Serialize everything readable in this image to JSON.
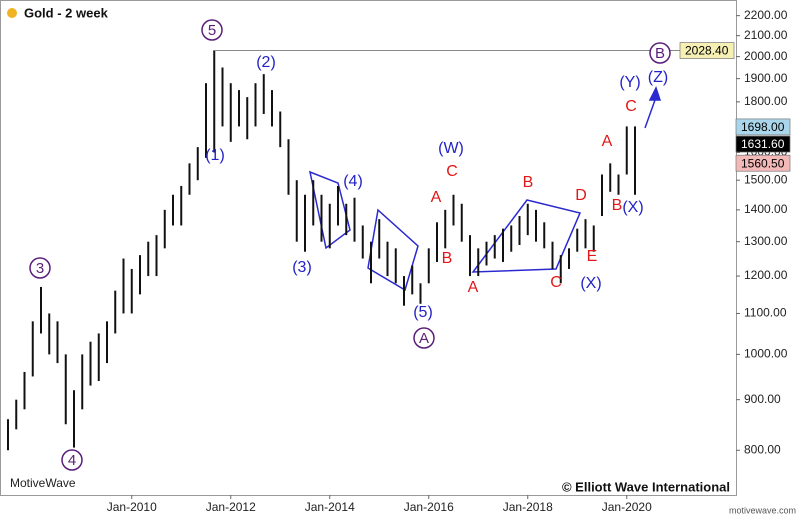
{
  "chart_data": {
    "type": "ohlc",
    "title": "Gold - 2 week",
    "title_dot_color": "#f0b323",
    "brand": "MotiveWave",
    "credit": "© Elliott Wave International",
    "site": "motivewave.com",
    "log_scale": true,
    "color": "#111111",
    "x": [
      "2007-07",
      "2007-09",
      "2007-11",
      "2008-01",
      "2008-03",
      "2008-05",
      "2008-07",
      "2008-09",
      "2008-11",
      "2009-01",
      "2009-03",
      "2009-05",
      "2009-07",
      "2009-09",
      "2009-11",
      "2010-01",
      "2010-03",
      "2010-05",
      "2010-07",
      "2010-09",
      "2010-11",
      "2011-01",
      "2011-03",
      "2011-05",
      "2011-07",
      "2011-09",
      "2011-11",
      "2012-01",
      "2012-03",
      "2012-05",
      "2012-07",
      "2012-09",
      "2012-11",
      "2013-01",
      "2013-03",
      "2013-05",
      "2013-07",
      "2013-09",
      "2013-11",
      "2014-01",
      "2014-03",
      "2014-05",
      "2014-07",
      "2014-09",
      "2014-11",
      "2015-01",
      "2015-03",
      "2015-05",
      "2015-07",
      "2015-09",
      "2015-11",
      "2016-01",
      "2016-03",
      "2016-05",
      "2016-07",
      "2016-09",
      "2016-11",
      "2017-01",
      "2017-03",
      "2017-05",
      "2017-07",
      "2017-09",
      "2017-11",
      "2018-01",
      "2018-03",
      "2018-05",
      "2018-07",
      "2018-09",
      "2018-11",
      "2019-01",
      "2019-03",
      "2019-05",
      "2019-07",
      "2019-09",
      "2019-11",
      "2020-01",
      "2020-03"
    ],
    "high": [
      860,
      900,
      960,
      1080,
      1170,
      1100,
      1080,
      1000,
      920,
      1000,
      1030,
      1050,
      1080,
      1160,
      1250,
      1220,
      1260,
      1300,
      1320,
      1400,
      1450,
      1480,
      1560,
      1620,
      1880,
      2030,
      1950,
      1880,
      1850,
      1820,
      1880,
      1920,
      1850,
      1760,
      1650,
      1500,
      1450,
      1500,
      1450,
      1420,
      1480,
      1420,
      1440,
      1350,
      1300,
      1370,
      1300,
      1280,
      1200,
      1230,
      1180,
      1280,
      1360,
      1400,
      1450,
      1420,
      1320,
      1280,
      1300,
      1320,
      1340,
      1350,
      1380,
      1420,
      1400,
      1360,
      1300,
      1260,
      1280,
      1340,
      1370,
      1350,
      1520,
      1560,
      1520,
      1700,
      1700
    ],
    "low": [
      800,
      840,
      880,
      950,
      1050,
      1000,
      980,
      850,
      805,
      880,
      930,
      940,
      980,
      1050,
      1100,
      1100,
      1150,
      1200,
      1200,
      1280,
      1350,
      1350,
      1450,
      1500,
      1580,
      1600,
      1700,
      1640,
      1700,
      1650,
      1700,
      1750,
      1700,
      1620,
      1450,
      1300,
      1270,
      1350,
      1300,
      1280,
      1350,
      1320,
      1300,
      1250,
      1180,
      1250,
      1200,
      1180,
      1120,
      1150,
      1125,
      1180,
      1240,
      1280,
      1350,
      1300,
      1200,
      1200,
      1230,
      1250,
      1240,
      1270,
      1290,
      1320,
      1300,
      1280,
      1220,
      1180,
      1220,
      1270,
      1280,
      1270,
      1380,
      1460,
      1450,
      1520,
      1450
    ],
    "xlim": [
      "2007-07",
      "2022-03"
    ],
    "xticks": [
      {
        "value": "2010-01",
        "label": "Jan-2010"
      },
      {
        "value": "2012-01",
        "label": "Jan-2012"
      },
      {
        "value": "2014-01",
        "label": "Jan-2014"
      },
      {
        "value": "2016-01",
        "label": "Jan-2016"
      },
      {
        "value": "2018-01",
        "label": "Jan-2018"
      },
      {
        "value": "2020-01",
        "label": "Jan-2020"
      }
    ],
    "ylim": [
      750,
      2250
    ],
    "yticks": [
      {
        "value": 800,
        "label": "800.00"
      },
      {
        "value": 900,
        "label": "900.00"
      },
      {
        "value": 1000,
        "label": "1000.00"
      },
      {
        "value": 1100,
        "label": "1100.00"
      },
      {
        "value": 1200,
        "label": "1200.00"
      },
      {
        "value": 1300,
        "label": "1300.00"
      },
      {
        "value": 1400,
        "label": "1400.00"
      },
      {
        "value": 1500,
        "label": "1500.00"
      },
      {
        "value": 1600,
        "label": "1600.00"
      },
      {
        "value": 1700,
        "label": "1700.00"
      },
      {
        "value": 1800,
        "label": "1800.00"
      },
      {
        "value": 1900,
        "label": "1900.00"
      },
      {
        "value": 2000,
        "label": "2000.00"
      },
      {
        "value": 2100,
        "label": "2100.00"
      },
      {
        "value": 2200,
        "label": "2200.00"
      }
    ],
    "price_labels": [
      {
        "value": 2028.4,
        "label": "2028.40",
        "color": "#f6f0b4",
        "text_color": "#000000"
      },
      {
        "value": 1698,
        "label": "1698.00",
        "color": "#a9d6ea",
        "text_color": "#000000"
      },
      {
        "value": 1631.6,
        "label": "1631.60",
        "color": "#000000",
        "text_color": "#ffffff"
      },
      {
        "value": 1560.5,
        "label": "1560.50",
        "color": "#f3b8b8",
        "text_color": "#000000"
      }
    ],
    "annotations": [
      {
        "text": "5",
        "style": "circle"
      },
      {
        "text": "3",
        "style": "circle"
      },
      {
        "text": "4",
        "style": "circle"
      },
      {
        "text": "A",
        "style": "circle"
      },
      {
        "text": "B",
        "style": "circle"
      },
      {
        "text": "(1)",
        "style": "blue"
      },
      {
        "text": "(2)",
        "style": "blue"
      },
      {
        "text": "(3)",
        "style": "blue"
      },
      {
        "text": "(4)",
        "style": "blue"
      },
      {
        "text": "(5)",
        "style": "blue"
      },
      {
        "text": "(W)",
        "style": "blue"
      },
      {
        "text": "(X)",
        "style": "blue"
      },
      {
        "text": "(X)",
        "style": "blue"
      },
      {
        "text": "(Y)",
        "style": "blue"
      },
      {
        "text": "(Z)",
        "style": "blue"
      },
      {
        "text": "C",
        "style": "red"
      },
      {
        "text": "A",
        "style": "red"
      },
      {
        "text": "B",
        "style": "red"
      },
      {
        "text": "A",
        "style": "red"
      },
      {
        "text": "B",
        "style": "red"
      },
      {
        "text": "C",
        "style": "red"
      },
      {
        "text": "D",
        "style": "red"
      },
      {
        "text": "E",
        "style": "red"
      },
      {
        "text": "A",
        "style": "red"
      },
      {
        "text": "C",
        "style": "red"
      },
      {
        "text": "B",
        "style": "red"
      }
    ]
  }
}
